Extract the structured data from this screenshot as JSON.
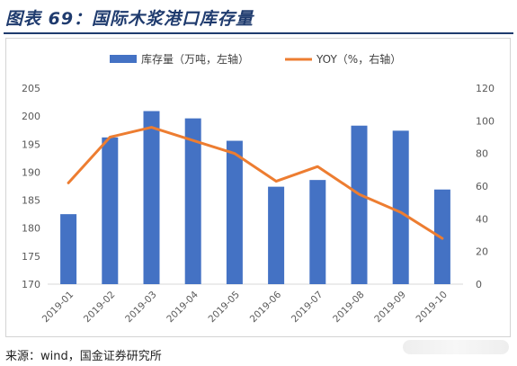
{
  "header": {
    "title": "图表 69：国际木浆港口库存量"
  },
  "footer": {
    "source": "来源：wind，国金证券研究所"
  },
  "colors": {
    "bar": "#4472c4",
    "line": "#ed7d31",
    "title": "#1f3b6e",
    "axis_text": "#595959",
    "axis_line": "#d9d9d9"
  },
  "chart_data": {
    "type": "bar",
    "title": "",
    "categories": [
      "2019-01",
      "2019-02",
      "2019-03",
      "2019-04",
      "2019-05",
      "2019-06",
      "2019-07",
      "2019-08",
      "2019-09",
      "2019-10"
    ],
    "series": [
      {
        "name": "库存量（万吨，左轴）",
        "type": "bar",
        "axis": "left",
        "values": [
          182.5,
          196.2,
          200.9,
          199.6,
          195.6,
          187.4,
          188.6,
          198.3,
          197.4,
          186.9
        ]
      },
      {
        "name": "YOY（%，右轴）",
        "type": "line",
        "axis": "right",
        "values": [
          62,
          90,
          96,
          88,
          80,
          63,
          72,
          55,
          44,
          28
        ]
      }
    ],
    "y_left": {
      "min": 170,
      "max": 205,
      "step": 5,
      "ticks": [
        "170",
        "175",
        "180",
        "185",
        "190",
        "195",
        "200",
        "205"
      ]
    },
    "y_right": {
      "min": 0,
      "max": 120,
      "step": 20,
      "ticks": [
        "0",
        "20",
        "40",
        "60",
        "80",
        "100",
        "120"
      ]
    },
    "grid": false,
    "legend_position": "top"
  }
}
